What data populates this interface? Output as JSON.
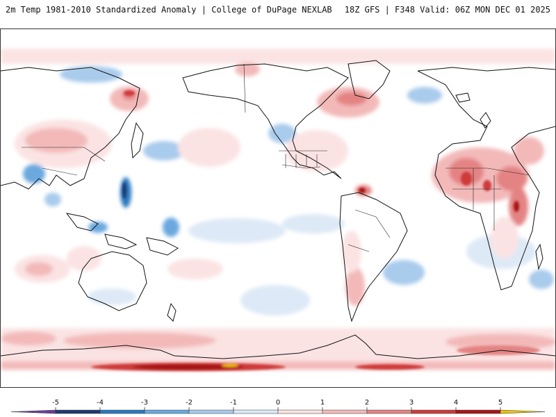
{
  "header": {
    "product": "2m Temp 1981-2010 Standardized Anomaly",
    "separator": "|",
    "source": "College of DuPage NEXLAB",
    "model_run": "18Z GFS",
    "forecast": "F348 Valid: 06Z MON DEC 01 2025"
  },
  "colorbar": {
    "ticks": [
      "-5",
      "-4",
      "-3",
      "-2",
      "-1",
      "0",
      "1",
      "2",
      "3",
      "4",
      "5"
    ],
    "colors": {
      "below_min": "#6a3d9a",
      "m5_m4": "#1f3a70",
      "m4_m3": "#2c78c0",
      "m3_m2": "#6aa8de",
      "m2_m1": "#a9cbec",
      "m1_0": "#dde9f6",
      "p0_1": "#fbe3e3",
      "p1_2": "#f3b9b9",
      "p2_3": "#e48383",
      "p3_4": "#cf3b3b",
      "p4_5": "#a61616",
      "above_max": "#f2c200"
    }
  },
  "map": {
    "land_line_color": "#111111",
    "border_line_color": "#222222"
  }
}
